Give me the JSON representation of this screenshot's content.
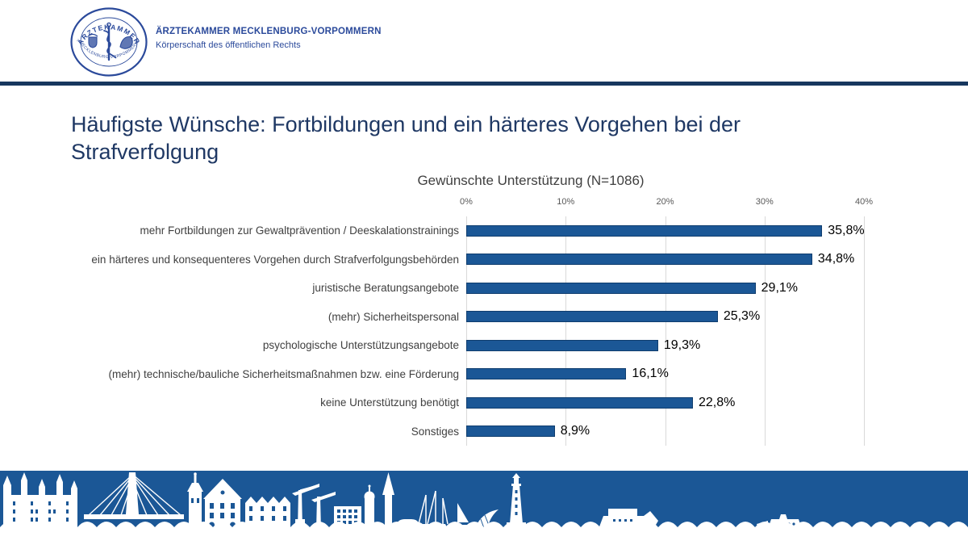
{
  "header": {
    "org_name": "ÄRZTEKAMMER MECKLENBURG-VORPOMMERN",
    "org_subtitle": "Körperschaft des öffentlichen Rechts",
    "logo": {
      "top_text": "ÄRZTEKAMMER",
      "bottom_text": "MECKLENBURG-VORPOMMERN",
      "icon": "asclepius-staff-seal"
    }
  },
  "slide": {
    "title": "Häufigste Wünsche: Fortbildungen und ein härteres Vorgehen bei der Strafverfolgung"
  },
  "chart_data": {
    "type": "bar",
    "orientation": "horizontal",
    "title": "Gewünschte Unterstützung (N=1086)",
    "categories": [
      "mehr Fortbildungen zur Gewaltprävention / Deeskalationstrainings",
      "ein härteres und konsequenteres Vorgehen durch Strafverfolgungsbehörden",
      "juristische Beratungsangebote",
      "(mehr) Sicherheitspersonal",
      "psychologische Unterstützungsangebote",
      "(mehr) technische/bauliche Sicherheitsmaßnahmen bzw. eine Förderung",
      "keine Unterstützung benötigt",
      "Sonstiges"
    ],
    "values": [
      35.8,
      34.8,
      29.1,
      25.3,
      19.3,
      16.1,
      22.8,
      8.9
    ],
    "value_labels": [
      "35,8%",
      "34,8%",
      "29,1%",
      "25,3%",
      "19,3%",
      "16,1%",
      "22,8%",
      "8,9%"
    ],
    "axis_ticks": [
      "0%",
      "10%",
      "20%",
      "30%",
      "40%"
    ],
    "xlim": [
      0,
      40
    ],
    "grid": true,
    "legend": "none",
    "bar_color": "#1B5796",
    "bar_border_color": "#0F3D6E",
    "gridline_color": "#D9D9D9"
  },
  "colors": {
    "brand_blue": "#2B4A9B",
    "title_navy": "#1F3864",
    "divider_navy": "#17375E",
    "footer_blue": "#1B5796"
  }
}
